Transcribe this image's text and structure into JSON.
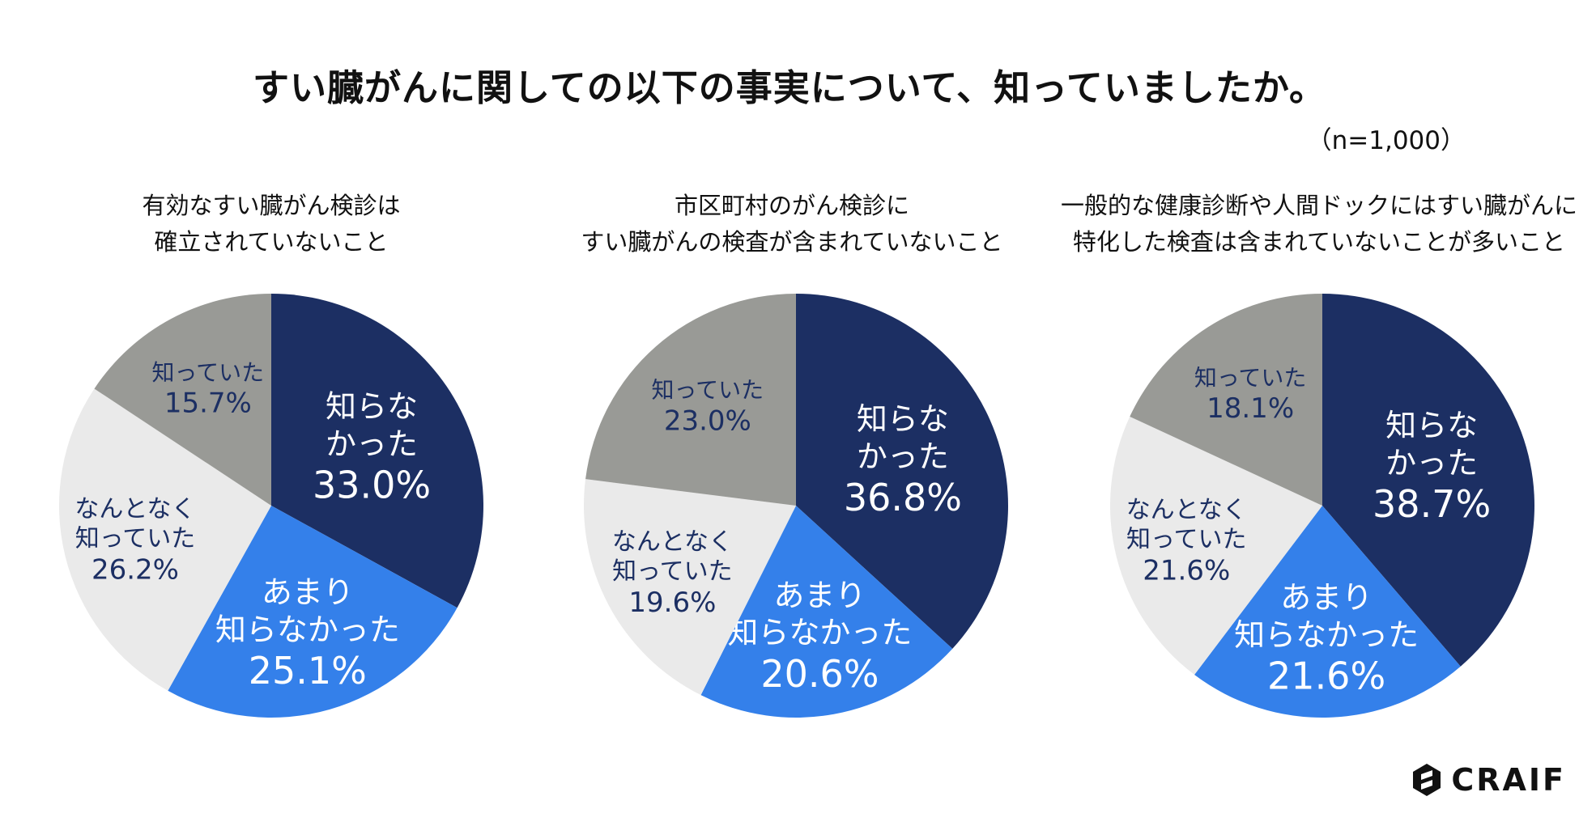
{
  "title": "すい臓がんに関しての以下の事実について、知っていましたか。",
  "sample_note": "（n=1,000）",
  "brand": "CRAIF",
  "colors": {
    "dark_navy": "#1c2f63",
    "blue": "#3480ea",
    "light_gray": "#eaeaea",
    "gray": "#999a96",
    "label_dark": "#1c2f63",
    "label_white": "#ffffff"
  },
  "chart_data": [
    {
      "type": "pie",
      "title_lines": [
        "有効なすい臓がん検診は",
        "確立されていないこと"
      ],
      "slices": [
        {
          "label_lines": [
            "知らな",
            "かった"
          ],
          "value": 33.0,
          "value_label": "33.0%",
          "color": "#1c2f63"
        },
        {
          "label_lines": [
            "あまり",
            "知らなかった"
          ],
          "value": 25.1,
          "value_label": "25.1%",
          "color": "#3480ea"
        },
        {
          "label_lines": [
            "なんとなく",
            "知っていた"
          ],
          "value": 26.2,
          "value_label": "26.2%",
          "color": "#eaeaea"
        },
        {
          "label_lines": [
            "知っていた"
          ],
          "value": 15.7,
          "value_label": "15.7%",
          "color": "#999a96"
        }
      ]
    },
    {
      "type": "pie",
      "title_lines": [
        "市区町村のがん検診に",
        "すい臓がんの検査が含まれていないこと"
      ],
      "slices": [
        {
          "label_lines": [
            "知らな",
            "かった"
          ],
          "value": 36.8,
          "value_label": "36.8%",
          "color": "#1c2f63"
        },
        {
          "label_lines": [
            "あまり",
            "知らなかった"
          ],
          "value": 20.6,
          "value_label": "20.6%",
          "color": "#3480ea"
        },
        {
          "label_lines": [
            "なんとなく",
            "知っていた"
          ],
          "value": 19.6,
          "value_label": "19.6%",
          "color": "#eaeaea"
        },
        {
          "label_lines": [
            "知っていた"
          ],
          "value": 23.0,
          "value_label": "23.0%",
          "color": "#999a96"
        }
      ]
    },
    {
      "type": "pie",
      "title_lines": [
        "一般的な健康診断や人間ドックにはすい臓がんに",
        "特化した検査は含まれていないことが多いこと"
      ],
      "slices": [
        {
          "label_lines": [
            "知らな",
            "かった"
          ],
          "value": 38.7,
          "value_label": "38.7%",
          "color": "#1c2f63"
        },
        {
          "label_lines": [
            "あまり",
            "知らなかった"
          ],
          "value": 21.6,
          "value_label": "21.6%",
          "color": "#3480ea"
        },
        {
          "label_lines": [
            "なんとなく",
            "知っていた"
          ],
          "value": 21.6,
          "value_label": "21.6%",
          "color": "#eaeaea"
        },
        {
          "label_lines": [
            "知っていた"
          ],
          "value": 18.1,
          "value_label": "18.1%",
          "color": "#999a96"
        }
      ]
    }
  ]
}
